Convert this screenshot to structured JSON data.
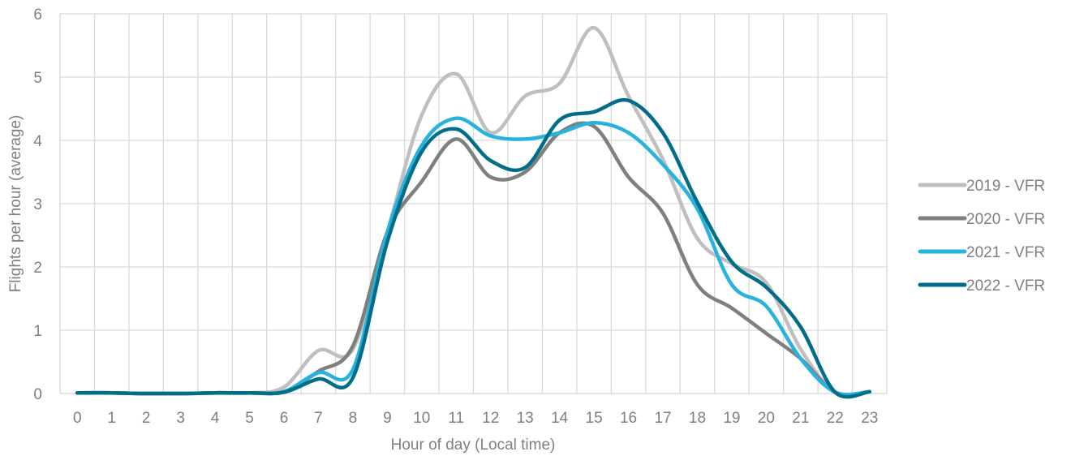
{
  "chart_data": {
    "type": "line",
    "title": "",
    "xlabel": "Hour of day (Local time)",
    "ylabel": "Flights per hour (average)",
    "x": [
      0,
      1,
      2,
      3,
      4,
      5,
      6,
      7,
      8,
      9,
      10,
      11,
      12,
      13,
      14,
      15,
      16,
      17,
      18,
      19,
      20,
      21,
      22,
      23
    ],
    "xlim": [
      0,
      23
    ],
    "ylim": [
      0,
      6
    ],
    "yticks": [
      0,
      1,
      2,
      3,
      4,
      5,
      6
    ],
    "grid": true,
    "legend_position": "right",
    "smooth": true,
    "series": [
      {
        "name": "2019 - VFR",
        "color": "#bfbfbf",
        "values": [
          0.01,
          0.01,
          0.0,
          0.0,
          0.01,
          0.01,
          0.1,
          0.68,
          0.7,
          2.55,
          4.4,
          5.05,
          4.12,
          4.7,
          4.9,
          5.78,
          4.7,
          3.7,
          2.45,
          2.05,
          1.75,
          0.7,
          0.02,
          0.03
        ]
      },
      {
        "name": "2020 - VFR",
        "color": "#7f7f7f",
        "values": [
          0.01,
          0.01,
          0.0,
          0.0,
          0.01,
          0.01,
          0.03,
          0.35,
          0.75,
          2.55,
          3.35,
          4.02,
          3.42,
          3.5,
          4.12,
          4.22,
          3.42,
          2.85,
          1.72,
          1.35,
          0.95,
          0.55,
          0.02,
          0.03
        ]
      },
      {
        "name": "2021 - VFR",
        "color": "#27b3dd",
        "values": [
          0.01,
          0.01,
          0.0,
          0.0,
          0.01,
          0.01,
          0.03,
          0.33,
          0.38,
          2.55,
          3.92,
          4.35,
          4.07,
          4.02,
          4.12,
          4.28,
          4.12,
          3.62,
          2.92,
          1.72,
          1.38,
          0.55,
          0.02,
          0.03
        ]
      },
      {
        "name": "2022 - VFR",
        "color": "#006e88",
        "values": [
          0.01,
          0.01,
          0.0,
          0.0,
          0.01,
          0.01,
          0.02,
          0.23,
          0.25,
          2.4,
          3.82,
          4.18,
          3.68,
          3.57,
          4.32,
          4.45,
          4.63,
          4.12,
          3.02,
          2.08,
          1.68,
          1.05,
          0.02,
          0.03
        ]
      }
    ]
  }
}
